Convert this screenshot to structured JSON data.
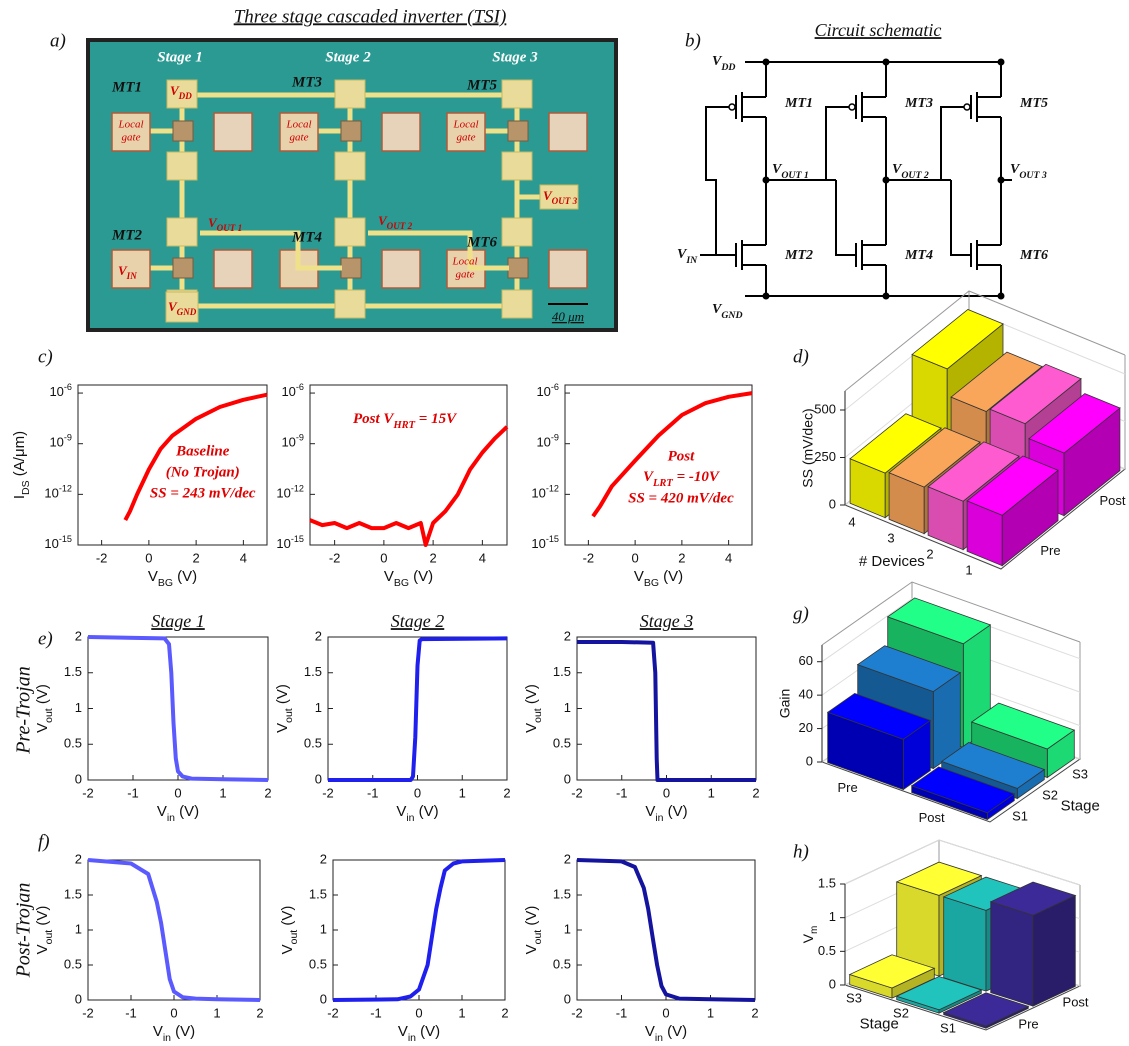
{
  "panel_labels": [
    "a)",
    "b)",
    "c)",
    "d)",
    "e)",
    "f)",
    "g)",
    "h)"
  ],
  "micrograph": {
    "title": "Three stage cascaded inverter (TSI)",
    "stages": [
      "Stage 1",
      "Stage 2",
      "Stage 3"
    ],
    "transistors": [
      "MT1",
      "MT2",
      "MT3",
      "MT4",
      "MT5",
      "MT6"
    ],
    "local_gate": [
      "Local",
      "gate"
    ],
    "vdd": [
      "V",
      "DD"
    ],
    "vin": [
      "V",
      "IN"
    ],
    "vgnd": [
      "V",
      "GND"
    ],
    "vout": [
      [
        "V",
        "OUT 1"
      ],
      [
        "V",
        "OUT 2"
      ],
      [
        "V",
        "OUT 3"
      ]
    ],
    "scale_bar": "40 μm"
  },
  "schematic": {
    "title": "Circuit schematic",
    "transistors": [
      "MT1",
      "MT2",
      "MT3",
      "MT4",
      "MT5",
      "MT6"
    ],
    "vdd": [
      "V",
      "DD"
    ],
    "vin": [
      "V",
      "IN"
    ],
    "vgnd": [
      "V",
      "GND"
    ],
    "vout": [
      [
        "V",
        "OUT 1"
      ],
      [
        "V",
        "OUT 2"
      ],
      [
        "V",
        "OUT 3"
      ]
    ]
  },
  "row_labels": [
    "Pre-Trojan",
    "Post-Trojan"
  ],
  "chart_data": [
    {
      "type": "line",
      "yscale": "log",
      "xlabel": [
        "V",
        "BG",
        " (V)"
      ],
      "ylabel": [
        "I",
        "DS",
        " (A/μm)"
      ],
      "xlim": [
        -3,
        5
      ],
      "ylim": [
        1e-15,
        3e-06
      ],
      "xticks": [
        -2,
        0,
        2,
        4
      ],
      "yticks": [
        {
          "value": 1e-15,
          "label": [
            "10",
            "-15"
          ]
        },
        {
          "value": 1e-12,
          "label": [
            "10",
            "-12"
          ]
        },
        {
          "value": 1e-09,
          "label": [
            "10",
            "-9"
          ]
        },
        {
          "value": 1e-06,
          "label": [
            "10",
            "-6"
          ]
        }
      ],
      "color": "#ff0000",
      "x": [
        -3,
        -2,
        -1,
        -0.8,
        -0.5,
        0,
        0.5,
        1,
        2,
        3,
        4,
        5
      ],
      "values": [
        1e-14,
        null,
        3e-14,
        1e-13,
        1e-12,
        3e-11,
        5e-10,
        3e-09,
        3e-08,
        1.5e-07,
        4e-07,
        8e-07
      ],
      "annotations": [
        "Baseline",
        "(No Trojan)",
        "SS = 243 mV/dec"
      ]
    },
    {
      "type": "line",
      "yscale": "log",
      "xlabel": [
        "V",
        "BG",
        " (V)"
      ],
      "xlim": [
        -3,
        5
      ],
      "ylim": [
        1e-15,
        3e-06
      ],
      "xticks": [
        -2,
        0,
        2,
        4
      ],
      "yticks": [
        {
          "value": 1e-15,
          "label": [
            "10",
            "-15"
          ]
        },
        {
          "value": 1e-12,
          "label": [
            "10",
            "-12"
          ]
        },
        {
          "value": 1e-09,
          "label": [
            "10",
            "-9"
          ]
        },
        {
          "value": 1e-06,
          "label": [
            "10",
            "-6"
          ]
        }
      ],
      "color": "#ff0000",
      "x": [
        -3,
        -2.5,
        -2,
        -1.5,
        -1,
        -0.5,
        0,
        0.5,
        1,
        1.5,
        1.7,
        2,
        2.5,
        3,
        3.5,
        4,
        4.5,
        5
      ],
      "values": [
        3e-14,
        1.5e-14,
        2e-14,
        1e-14,
        2e-14,
        1e-14,
        1e-14,
        2e-14,
        1e-14,
        2e-14,
        1e-15,
        2e-14,
        1e-13,
        1e-12,
        3e-11,
        3e-10,
        2e-09,
        1e-08
      ],
      "annotations": [
        [
          "Post V",
          "HRT",
          " = 15V"
        ]
      ]
    },
    {
      "type": "line",
      "yscale": "log",
      "xlabel": [
        "V",
        "BG",
        " (V)"
      ],
      "xlim": [
        -3,
        5
      ],
      "ylim": [
        1e-15,
        3e-06
      ],
      "xticks": [
        -2,
        0,
        2,
        4
      ],
      "yticks": [
        {
          "value": 1e-15,
          "label": [
            "10",
            "-15"
          ]
        },
        {
          "value": 1e-12,
          "label": [
            "10",
            "-12"
          ]
        },
        {
          "value": 1e-09,
          "label": [
            "10",
            "-9"
          ]
        },
        {
          "value": 1e-06,
          "label": [
            "10",
            "-6"
          ]
        }
      ],
      "color": "#ff0000",
      "x": [
        -3,
        -2.5,
        -1.8,
        -1.5,
        -1,
        0,
        1,
        2,
        3,
        4,
        5
      ],
      "values": [
        1e-14,
        null,
        5e-14,
        2e-13,
        3e-12,
        1e-10,
        3e-09,
        5e-08,
        2.5e-07,
        6e-07,
        1e-06
      ],
      "annotations": [
        "Post",
        [
          "V",
          "LRT",
          " = -10V"
        ],
        "SS = 420 mV/dec"
      ]
    },
    {
      "type": "bar3d",
      "xlabel": "# Devices",
      "ylabel": "SS (mV/dec)",
      "categories": [
        "4",
        "3",
        "2",
        "1"
      ],
      "rows": [
        "Pre",
        "Post"
      ],
      "colors": [
        "#ffff00",
        "#f9a55a",
        "#ff5bd0",
        "#ff00ff"
      ],
      "values": [
        [
          235,
          245,
          255,
          265
        ],
        [
          520,
          380,
          400,
          330
        ]
      ],
      "ylim": [
        0,
        600
      ],
      "yticks": [
        0,
        250,
        500
      ]
    },
    {
      "type": "line",
      "title": "Stage 1",
      "xlabel": [
        "V",
        "in",
        " (V)"
      ],
      "ylabel": [
        "V",
        "out",
        " (V)"
      ],
      "xlim": [
        -2,
        2
      ],
      "ylim": [
        0,
        2
      ],
      "xticks": [
        -2,
        -1,
        0,
        1,
        2
      ],
      "yticks": [
        0,
        0.5,
        1,
        1.5,
        2
      ],
      "color": "#5a5aff",
      "x": [
        -2,
        -0.3,
        -0.2,
        -0.15,
        -0.1,
        -0.05,
        0,
        0.1,
        0.3,
        1,
        2
      ],
      "values": [
        2,
        1.98,
        1.9,
        1.5,
        0.8,
        0.3,
        0.12,
        0.05,
        0.02,
        0.01,
        0
      ]
    },
    {
      "type": "line",
      "title": "Stage 2",
      "xlabel": [
        "V",
        "in",
        " (V)"
      ],
      "ylabel": [
        "V",
        "out",
        " (V)"
      ],
      "xlim": [
        -2,
        2
      ],
      "ylim": [
        0,
        2
      ],
      "xticks": [
        -2,
        -1,
        0,
        1,
        2
      ],
      "yticks": [
        0,
        0.5,
        1,
        1.5,
        2
      ],
      "color": "#1f1fee",
      "x": [
        -2,
        -0.15,
        -0.1,
        -0.05,
        0,
        0.05,
        0.1,
        2
      ],
      "values": [
        0,
        0,
        0.05,
        0.6,
        1.6,
        1.95,
        1.97,
        1.98
      ]
    },
    {
      "type": "line",
      "title": "Stage 3",
      "xlabel": [
        "V",
        "in",
        " (V)"
      ],
      "ylabel": [
        "V",
        "out",
        " (V)"
      ],
      "xlim": [
        -2,
        2
      ],
      "ylim": [
        0,
        2
      ],
      "xticks": [
        -2,
        -1,
        0,
        1,
        2
      ],
      "yticks": [
        0,
        0.5,
        1,
        1.5,
        2
      ],
      "color": "#14149e",
      "x": [
        -2,
        -1,
        -0.3,
        -0.25,
        -0.22,
        -0.2,
        2
      ],
      "values": [
        1.93,
        1.93,
        1.92,
        1.5,
        0.3,
        0,
        0
      ]
    },
    {
      "type": "line",
      "xlabel": [
        "V",
        "in",
        " (V)"
      ],
      "ylabel": [
        "V",
        "out",
        " (V)"
      ],
      "xlim": [
        -2,
        2
      ],
      "ylim": [
        0,
        2
      ],
      "xticks": [
        -2,
        -1,
        0,
        1,
        2
      ],
      "yticks": [
        0,
        0.5,
        1,
        1.5,
        2
      ],
      "color": "#5a5aff",
      "x": [
        -2,
        -1,
        -0.6,
        -0.4,
        -0.3,
        -0.2,
        -0.1,
        0,
        0.2,
        0.5,
        1,
        2
      ],
      "values": [
        2,
        1.95,
        1.8,
        1.4,
        1.1,
        0.7,
        0.3,
        0.12,
        0.04,
        0.02,
        0.01,
        0
      ]
    },
    {
      "type": "line",
      "xlabel": [
        "V",
        "in",
        " (V)"
      ],
      "ylabel": [
        "V",
        "out",
        " (V)"
      ],
      "xlim": [
        -2,
        2
      ],
      "ylim": [
        0,
        2
      ],
      "xticks": [
        -2,
        -1,
        0,
        1,
        2
      ],
      "yticks": [
        0,
        0.5,
        1,
        1.5,
        2
      ],
      "color": "#1f1fee",
      "x": [
        -2,
        -0.5,
        -0.2,
        0,
        0.2,
        0.3,
        0.4,
        0.5,
        0.6,
        0.8,
        1,
        2
      ],
      "values": [
        0,
        0.01,
        0.05,
        0.15,
        0.5,
        0.9,
        1.3,
        1.6,
        1.85,
        1.95,
        1.98,
        2
      ]
    },
    {
      "type": "line",
      "xlabel": [
        "V",
        "in",
        " (V)"
      ],
      "ylabel": [
        "V",
        "out",
        " (V)"
      ],
      "xlim": [
        -2,
        2
      ],
      "ylim": [
        0,
        2
      ],
      "xticks": [
        -2,
        -1,
        0,
        1,
        2
      ],
      "yticks": [
        0,
        0.5,
        1,
        1.5,
        2
      ],
      "color": "#14149e",
      "x": [
        -2,
        -1,
        -0.7,
        -0.5,
        -0.4,
        -0.3,
        -0.2,
        -0.1,
        0,
        0.3,
        1,
        2
      ],
      "values": [
        2,
        1.98,
        1.9,
        1.6,
        1.3,
        0.9,
        0.5,
        0.2,
        0.08,
        0.02,
        0.01,
        0
      ]
    },
    {
      "type": "bar3d",
      "xlabel": "Stage",
      "ylabel": "Gain",
      "categories": [
        "S1",
        "S2",
        "S3"
      ],
      "rows": [
        "Pre",
        "Post"
      ],
      "colors": [
        "#0000ff",
        "#1e7fd0",
        "#22ff88"
      ],
      "values": [
        [
          30,
          46,
          62
        ],
        [
          4,
          6,
          17
        ]
      ],
      "ylim": [
        0,
        70
      ],
      "yticks": [
        0,
        20,
        40,
        60
      ]
    },
    {
      "type": "bar3d",
      "xlabel": "Stage",
      "ylabel": [
        "V",
        "m"
      ],
      "categories": [
        "S3",
        "S2",
        "S1"
      ],
      "rows": [
        "Pre",
        "Post"
      ],
      "colors": [
        "#ffff33",
        "#20c4bd",
        "#3b2a98"
      ],
      "values": [
        [
          0.15,
          0.05,
          0.03
        ],
        [
          1.2,
          1.2,
          1.35
        ]
      ],
      "ylim": [
        0,
        1.5
      ],
      "yticks": [
        0,
        0.5,
        1,
        1.5
      ]
    }
  ]
}
